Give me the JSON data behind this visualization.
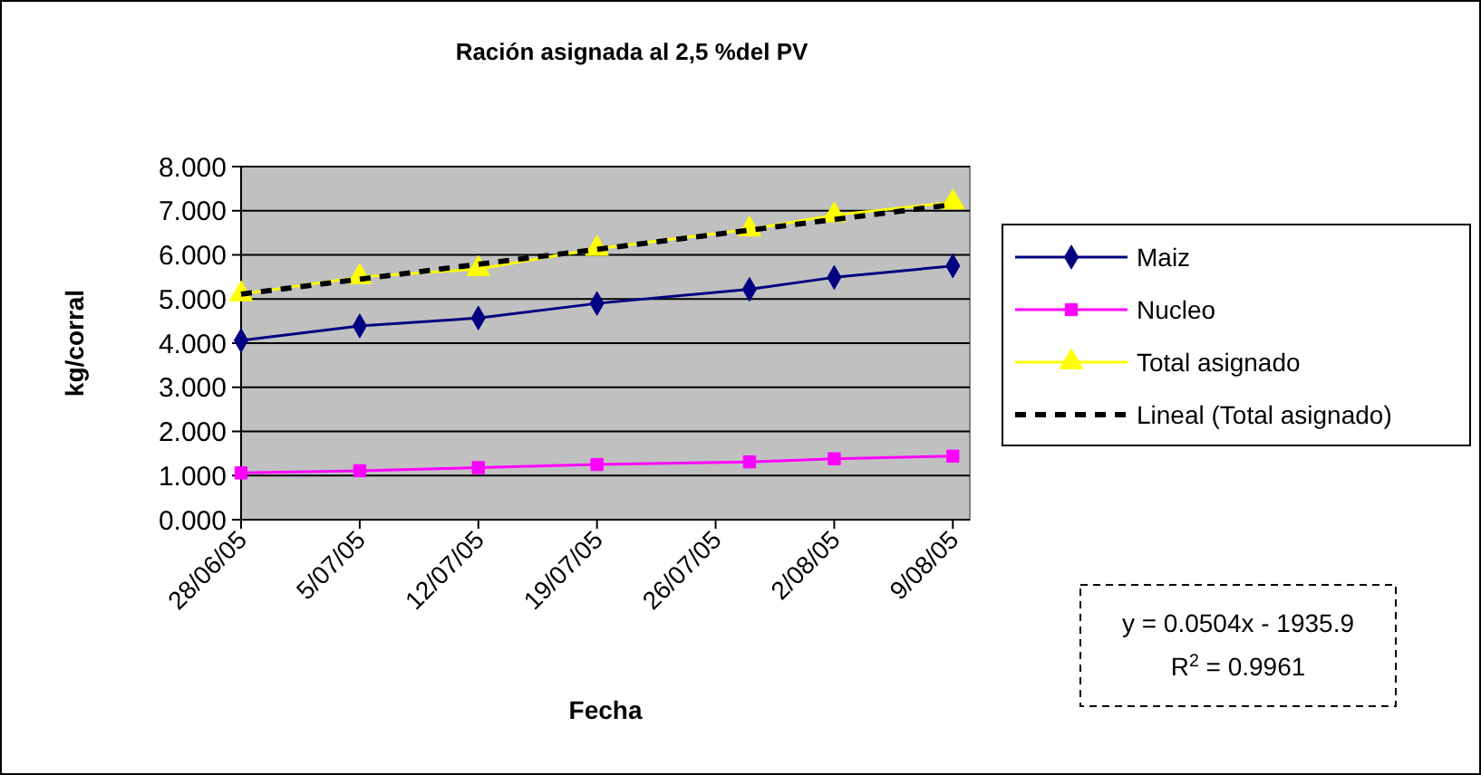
{
  "chart_data": {
    "type": "line",
    "title": "Ración asignada al 2,5 %del PV",
    "xlabel": "Fecha",
    "ylabel": "kg/corral",
    "x": [
      "--06-28",
      "--07-05",
      "--07-12",
      "--07-19",
      "--07-28",
      "--08-02",
      "--08-09"
    ],
    "xlim": [
      "--06-28",
      "--08-10"
    ],
    "xticks": [
      {
        "value": "--06-28",
        "label": "28/06/05"
      },
      {
        "value": "--07-05",
        "label": "5/07/05"
      },
      {
        "value": "--07-12",
        "label": "12/07/05"
      },
      {
        "value": "--07-19",
        "label": "19/07/05"
      },
      {
        "value": "--07-26",
        "label": "26/07/05"
      },
      {
        "value": "--08-02",
        "label": "2/08/05"
      },
      {
        "value": "--08-09",
        "label": "9/08/05"
      }
    ],
    "ylim": [
      0,
      8
    ],
    "yticks": [
      {
        "value": 0,
        "label": "0.000"
      },
      {
        "value": 1,
        "label": "1.000"
      },
      {
        "value": 2,
        "label": "2.000"
      },
      {
        "value": 3,
        "label": "3.000"
      },
      {
        "value": 4,
        "label": "4.000"
      },
      {
        "value": 5,
        "label": "5.000"
      },
      {
        "value": 6,
        "label": "6.000"
      },
      {
        "value": 7,
        "label": "7.000"
      },
      {
        "value": 8,
        "label": "8.000"
      }
    ],
    "grid": "y",
    "legend": "right",
    "series": [
      {
        "name": "Maiz",
        "color": "#000080",
        "marker": "diamond",
        "values": [
          4.06,
          4.39,
          4.57,
          4.9,
          5.22,
          5.49,
          5.75
        ]
      },
      {
        "name": "Nucleo",
        "color": "#ff00ff",
        "marker": "square",
        "values": [
          1.06,
          1.11,
          1.18,
          1.25,
          1.31,
          1.38,
          1.44
        ]
      },
      {
        "name": "Total asignado",
        "color": "#ffff00",
        "marker": "triangle",
        "values": [
          5.11,
          5.5,
          5.68,
          6.14,
          6.58,
          6.9,
          7.19
        ]
      },
      {
        "name": "Lineal (Total asignado)",
        "color": "#000000",
        "marker": "none",
        "line_style": "dashed",
        "x": [
          "--06-28",
          "--08-09"
        ],
        "values": [
          5.11,
          7.14
        ]
      }
    ],
    "annotations": [
      "y = 0.0504x - 1935.9",
      "R$^{2}$ = 0.9961"
    ]
  }
}
